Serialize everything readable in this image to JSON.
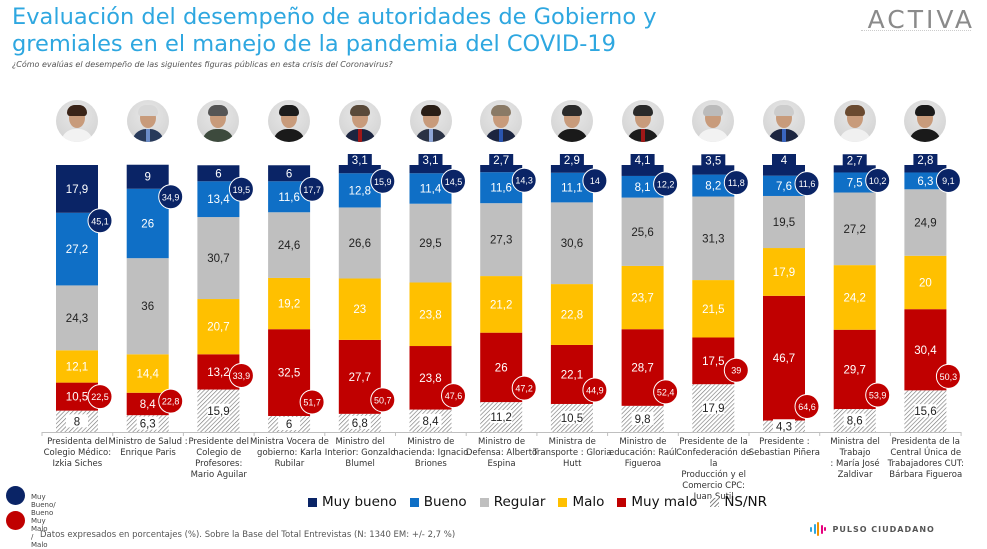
{
  "header": {
    "title": "Evaluación del desempeño de autoridades de Gobierno y gremiales en el manejo de la pandemia del COVID-19",
    "subtitle": "¿Cómo evalúas el desempeño de las siguientes figuras públicas en esta crisis del Coronavirus?",
    "brand": "ACTIVA"
  },
  "colors": {
    "muy_bueno": "#0a2466",
    "bueno": "#0f6fc6",
    "regular": "#bfbfbf",
    "malo": "#ffc000",
    "muy_malo": "#c00000",
    "ns_nr": "#8a8a8a",
    "title": "#2ea7e0"
  },
  "chart_data": {
    "type": "bar",
    "stacked": true,
    "orientation": "vertical",
    "title": "Evaluación del desempeño de autoridades de Gobierno y gremiales en el manejo de la pandemia del COVID-19",
    "ylabel": "%",
    "ylim": [
      0,
      100
    ],
    "grid": false,
    "legend_position": "bottom",
    "categories": [
      "Presidenta del Colegio Médico: Izkia Siches",
      "Ministro de Salud : Enrique Paris",
      "Presidente del Colegio de Profesores: Mario Aguilar",
      "Ministra Vocera de gobierno: Karla Rubilar",
      "Ministro del Interior: Gonzalo Blumel",
      "Ministro de hacienda: Ignacio Briones",
      "Ministro de Defensa: Alberto Espina",
      "Ministra de Transporte : Gloria Hutt",
      "Ministro de educación: Raúl Figueroa",
      "Presidente de la Confederación de la Producción y el Comercio CPC: Juan Sutil",
      "Presidente : Sebastian Piñera",
      "Ministra del Trabajo : María José Zaldivar",
      "Presidenta de la Central Única de Trabajadores CUT: Bárbara Figueroa"
    ],
    "category_lines": [
      [
        "Presidenta del",
        "Colegio Médico:",
        "Izkia Siches"
      ],
      [
        "Ministro de Salud :",
        "Enrique Paris"
      ],
      [
        "Presidente del",
        "Colegio de",
        "Profesores:",
        "Mario Aguilar"
      ],
      [
        "Ministra Vocera de",
        "gobierno: Karla",
        "Rubilar"
      ],
      [
        "Ministro del",
        "Interior: Gonzalo",
        "Blumel"
      ],
      [
        "Ministro de",
        "hacienda: Ignacio",
        "Briones"
      ],
      [
        "Ministro de",
        "Defensa: Alberto",
        "Espina"
      ],
      [
        "Ministra de",
        "Transporte : Gloria",
        "Hutt"
      ],
      [
        "Ministro de",
        "educación: Raúl",
        "Figueroa"
      ],
      [
        "Presidente de la",
        "Confederación de la",
        "Producción y el",
        "Comercio CPC:",
        "Juan Sutil"
      ],
      [
        "Presidente :",
        "Sebastian Piñera"
      ],
      [
        "Ministra del Trabajo",
        ": María José Zaldivar"
      ],
      [
        "Presidenta de la",
        "Central Única de",
        "Trabajadores CUT:",
        "Bárbara Figueroa"
      ]
    ],
    "series": [
      {
        "name": "Muy bueno",
        "key": "muy_bueno",
        "values": [
          17.9,
          9,
          6,
          6,
          3.1,
          3.1,
          2.7,
          2.9,
          4.1,
          3.5,
          4,
          2.7,
          2.8
        ],
        "labels": [
          "17,9",
          "9",
          "6",
          "6",
          "3,1",
          "3,1",
          "2,7",
          "2,9",
          "4,1",
          "3,5",
          "4",
          "2,7",
          "2,8"
        ]
      },
      {
        "name": "Bueno",
        "key": "bueno",
        "values": [
          27.2,
          26,
          13.4,
          11.6,
          12.8,
          11.4,
          11.6,
          11.1,
          8.1,
          8.2,
          7.6,
          7.5,
          6.3
        ],
        "labels": [
          "27,2",
          "26",
          "13,4",
          "11,6",
          "12,8",
          "11,4",
          "11,6",
          "11,1",
          "8,1",
          "8,2",
          "7,6",
          "7,5",
          "6,3"
        ]
      },
      {
        "name": "Regular",
        "key": "regular",
        "values": [
          24.3,
          36,
          30.7,
          24.6,
          26.6,
          29.5,
          27.3,
          30.6,
          25.6,
          31.3,
          19.5,
          27.2,
          24.9
        ],
        "labels": [
          "24,3",
          "36",
          "30,7",
          "24,6",
          "26,6",
          "29,5",
          "27,3",
          "30,6",
          "25,6",
          "31,3",
          "19,5",
          "27,2",
          "24,9"
        ]
      },
      {
        "name": "Malo",
        "key": "malo",
        "values": [
          12.1,
          14.4,
          20.7,
          19.2,
          23,
          23.8,
          21.2,
          22.8,
          23.7,
          21.5,
          17.9,
          24.2,
          20
        ],
        "labels": [
          "12,1",
          "14,4",
          "20,7",
          "19,2",
          "23",
          "23,8",
          "21,2",
          "22,8",
          "23,7",
          "21,5",
          "17,9",
          "24,2",
          "20"
        ]
      },
      {
        "name": "Muy malo",
        "key": "muy_malo",
        "values": [
          10.5,
          8.4,
          13.2,
          32.5,
          27.7,
          23.8,
          26,
          22.1,
          28.7,
          17.5,
          46.7,
          29.7,
          30.4
        ],
        "labels": [
          "10,5",
          "8,4",
          "13,2",
          "32,5",
          "27,7",
          "23,8",
          "26",
          "22,1",
          "28,7",
          "17,5",
          "46,7",
          "29,7",
          "30,4"
        ]
      },
      {
        "name": "NS/NR",
        "key": "ns_nr",
        "values": [
          8,
          6.3,
          15.9,
          6,
          6.8,
          8.4,
          11.2,
          10.5,
          9.8,
          17.9,
          4.3,
          8.6,
          15.6
        ],
        "labels": [
          "8",
          "6,3",
          "15,9",
          "6",
          "6,8",
          "8,4",
          "11,2",
          "10,5",
          "9,8",
          "17,9",
          "4,3",
          "8,6",
          "15,6"
        ]
      }
    ],
    "totals": {
      "muy_bueno_bueno": {
        "name": "Muy Bueno/ Bueno",
        "values": [
          45.1,
          34.9,
          19.5,
          17.7,
          15.9,
          14.5,
          14.3,
          14,
          12.2,
          11.8,
          11.6,
          10.2,
          9.1
        ],
        "labels": [
          "45,1",
          "34,9",
          "19,5",
          "17,7",
          "15,9",
          "14,5",
          "14,3",
          "14",
          "12,2",
          "11,8",
          "11,6",
          "10,2",
          "9,1"
        ]
      },
      "muy_malo_malo": {
        "name": "Muy Malo / Malo",
        "values": [
          22.5,
          22.8,
          33.9,
          51.7,
          50.7,
          47.6,
          47.2,
          44.9,
          52.4,
          39,
          64.6,
          53.9,
          50.3
        ],
        "labels": [
          "22,5",
          "22,8",
          "33,9",
          "51,7",
          "50,7",
          "47,6",
          "47,2",
          "44,9",
          "52,4",
          "39",
          "64,6",
          "53,9",
          "50,3"
        ]
      }
    }
  },
  "legend": {
    "items": [
      "Muy bueno",
      "Bueno",
      "Regular",
      "Malo",
      "Muy malo",
      "NS/NR"
    ],
    "totals_good": "Muy Bueno/ Bueno",
    "totals_bad": "Muy Malo / Malo"
  },
  "footer": {
    "note": "Datos expresados en porcentajes (%). Sobre la Base del Total Entrevistas (N: 1340  EM: +/- 2,7 %)",
    "source_logo": "PULSO CIUDADANO"
  },
  "avatars": [
    {
      "hair": "#3a2418",
      "body": "#f2f2f2",
      "tie": ""
    },
    {
      "hair": "#d8d8d8",
      "body": "#283a5a",
      "tie": "#6b8cc7"
    },
    {
      "hair": "#555555",
      "body": "#3d4a3d",
      "tie": ""
    },
    {
      "hair": "#1c1c1c",
      "body": "#1a1a1a",
      "tie": ""
    },
    {
      "hair": "#5a4a3a",
      "body": "#1c2540",
      "tie": "#a01818"
    },
    {
      "hair": "#2a1e16",
      "body": "#2a3245",
      "tie": "#8fa6d6"
    },
    {
      "hair": "#8a7a66",
      "body": "#1c2540",
      "tie": "#2a55b0"
    },
    {
      "hair": "#2a2a2a",
      "body": "#1a1a1a",
      "tie": ""
    },
    {
      "hair": "#2a2a2a",
      "body": "#1c1c1c",
      "tie": "#a01818"
    },
    {
      "hair": "#bbbbbb",
      "body": "#f2f2f2",
      "tie": ""
    },
    {
      "hair": "#cccccc",
      "body": "#1c2540",
      "tie": "#3a66c0"
    },
    {
      "hair": "#6a4a30",
      "body": "#f0f0f0",
      "tie": ""
    },
    {
      "hair": "#1a1a1a",
      "body": "#1a1a1a",
      "tie": ""
    }
  ]
}
